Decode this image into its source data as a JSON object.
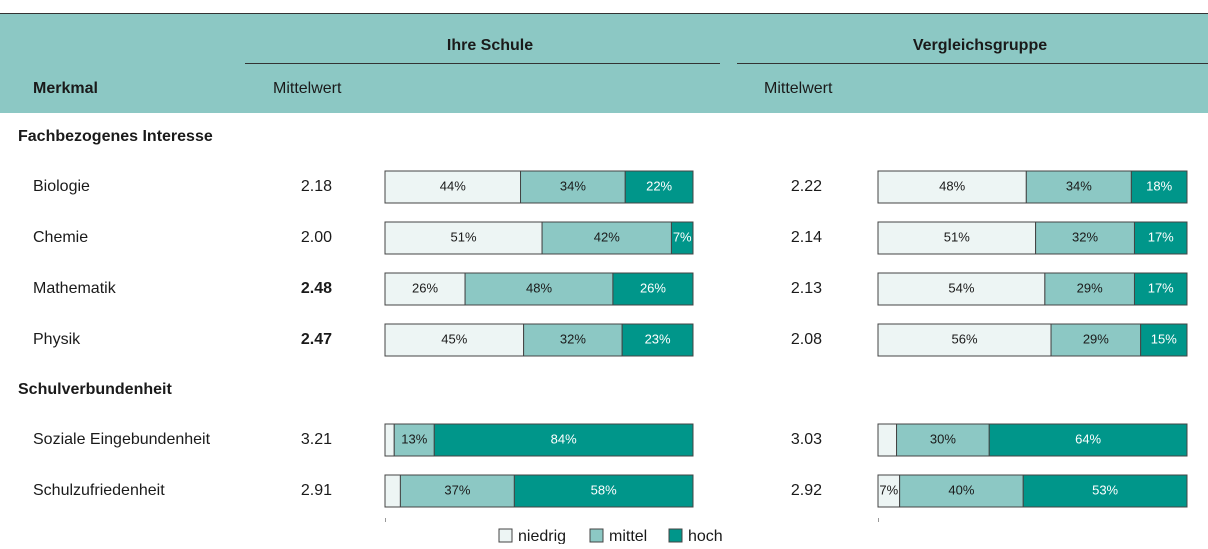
{
  "header": {
    "col_merkmal": "Merkmal",
    "group_left": "Ihre Schule",
    "group_right": "Vergleichsgruppe",
    "sub_left": "Mittelwert",
    "sub_right": "Mittelwert"
  },
  "sections": [
    {
      "title": "Fachbezogenes Interesse",
      "rows": [
        {
          "label": "Biologie",
          "school": {
            "mean": "2.18",
            "bold": false,
            "segments": [
              {
                "value": 44,
                "label": "44%"
              },
              {
                "value": 34,
                "label": "34%"
              },
              {
                "value": 22,
                "label": "22%"
              }
            ]
          },
          "comparison": {
            "mean": "2.22",
            "segments": [
              {
                "value": 48,
                "label": "48%"
              },
              {
                "value": 34,
                "label": "34%"
              },
              {
                "value": 18,
                "label": "18%"
              }
            ]
          }
        },
        {
          "label": "Chemie",
          "school": {
            "mean": "2.00",
            "bold": false,
            "segments": [
              {
                "value": 51,
                "label": "51%"
              },
              {
                "value": 42,
                "label": "42%"
              },
              {
                "value": 7,
                "label": "7%"
              }
            ]
          },
          "comparison": {
            "mean": "2.14",
            "segments": [
              {
                "value": 51,
                "label": "51%"
              },
              {
                "value": 32,
                "label": "32%"
              },
              {
                "value": 17,
                "label": "17%"
              }
            ]
          }
        },
        {
          "label": "Mathematik",
          "school": {
            "mean": "2.48",
            "bold": true,
            "segments": [
              {
                "value": 26,
                "label": "26%"
              },
              {
                "value": 48,
                "label": "48%"
              },
              {
                "value": 26,
                "label": "26%"
              }
            ]
          },
          "comparison": {
            "mean": "2.13",
            "segments": [
              {
                "value": 54,
                "label": "54%"
              },
              {
                "value": 29,
                "label": "29%"
              },
              {
                "value": 17,
                "label": "17%"
              }
            ]
          }
        },
        {
          "label": "Physik",
          "school": {
            "mean": "2.47",
            "bold": true,
            "segments": [
              {
                "value": 45,
                "label": "45%"
              },
              {
                "value": 32,
                "label": "32%"
              },
              {
                "value": 23,
                "label": "23%"
              }
            ]
          },
          "comparison": {
            "mean": "2.08",
            "segments": [
              {
                "value": 56,
                "label": "56%"
              },
              {
                "value": 29,
                "label": "29%"
              },
              {
                "value": 15,
                "label": "15%"
              }
            ]
          }
        }
      ]
    },
    {
      "title": "Schulverbundenheit",
      "rows": [
        {
          "label": "Soziale Eingebundenheit",
          "school": {
            "mean": "3.21",
            "bold": false,
            "segments": [
              {
                "value": 3
              },
              {
                "value": 13,
                "label": "13%"
              },
              {
                "value": 84,
                "label": "84%"
              }
            ]
          },
          "comparison": {
            "mean": "3.03",
            "segments": [
              {
                "value": 6
              },
              {
                "value": 30,
                "label": "30%"
              },
              {
                "value": 64,
                "label": "64%"
              }
            ]
          }
        },
        {
          "label": "Schulzufriedenheit",
          "school": {
            "mean": "2.91",
            "bold": false,
            "segments": [
              {
                "value": 5
              },
              {
                "value": 37,
                "label": "37%"
              },
              {
                "value": 58,
                "label": "58%"
              }
            ]
          },
          "comparison": {
            "mean": "2.92",
            "segments": [
              {
                "value": 7,
                "label": "7%"
              },
              {
                "value": 40,
                "label": "40%"
              },
              {
                "value": 53,
                "label": "53%"
              }
            ]
          }
        }
      ]
    }
  ],
  "legend": [
    {
      "name": "niedrig",
      "color": "#edf5f4"
    },
    {
      "name": "mittel",
      "color": "#8cc8c4"
    },
    {
      "name": "hoch",
      "color": "#00968a"
    }
  ]
}
